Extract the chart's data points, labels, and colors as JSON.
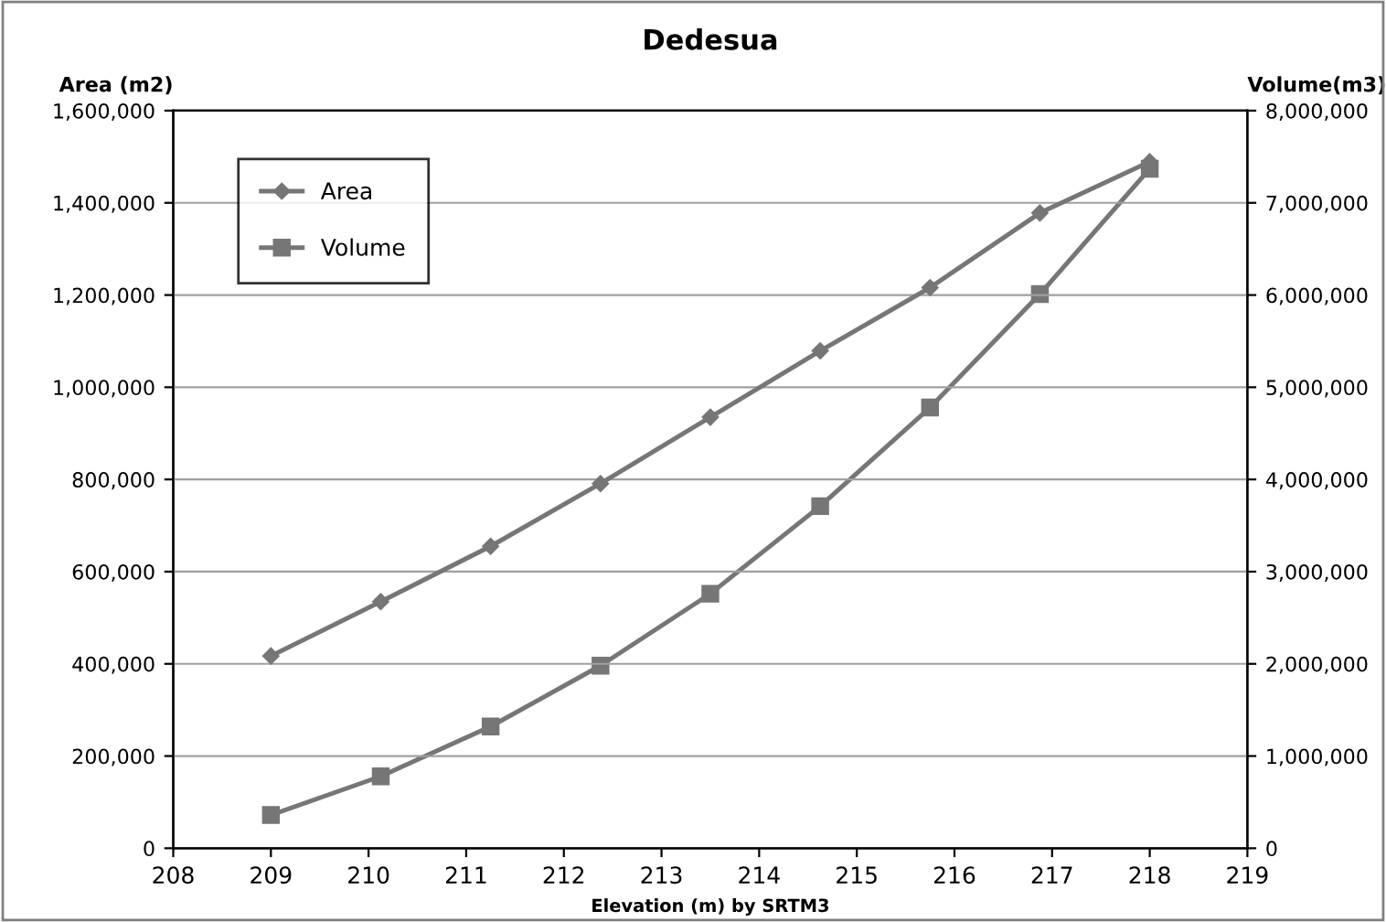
{
  "chart_data": {
    "type": "line",
    "title": "Dedesua",
    "xlabel": "Elevation (m) by SRTM3",
    "ylabel": "Area (m2)",
    "y2label": "Volume(m3)",
    "x": [
      209,
      210.125,
      211.25,
      212.375,
      213.5,
      214.625,
      215.75,
      216.875,
      218
    ],
    "series": [
      {
        "name": "Area",
        "color": "#767676",
        "marker": "diamond",
        "values": [
          417000,
          535000,
          655000,
          791000,
          935000,
          1079000,
          1216000,
          1378000,
          1489000
        ]
      },
      {
        "name": "Volume",
        "color": "#767676",
        "marker": "square",
        "axis": "y2",
        "values": [
          360000,
          780000,
          1320000,
          1980000,
          2760000,
          3710000,
          4780000,
          6010000,
          7370000
        ]
      }
    ],
    "xlim": [
      208,
      219
    ],
    "xticks": [
      208,
      209,
      210,
      211,
      212,
      213,
      214,
      215,
      216,
      217,
      218,
      219
    ],
    "ylim": [
      0,
      1600000
    ],
    "yticks": [
      {
        "value": 0,
        "label": "0"
      },
      {
        "value": 200000,
        "label": "200,000"
      },
      {
        "value": 400000,
        "label": "400,000"
      },
      {
        "value": 600000,
        "label": "600,000"
      },
      {
        "value": 800000,
        "label": "800,000"
      },
      {
        "value": 1000000,
        "label": "1,000,000"
      },
      {
        "value": 1200000,
        "label": "1,200,000"
      },
      {
        "value": 1400000,
        "label": "1,400,000"
      },
      {
        "value": 1600000,
        "label": "1,600,000"
      }
    ],
    "y2lim": [
      0,
      8000000
    ],
    "y2ticks": [
      {
        "value": 0,
        "label": "0"
      },
      {
        "value": 1000000,
        "label": "1,000,000"
      },
      {
        "value": 2000000,
        "label": "2,000,000"
      },
      {
        "value": 3000000,
        "label": "3,000,000"
      },
      {
        "value": 4000000,
        "label": "4,000,000"
      },
      {
        "value": 5000000,
        "label": "5,000,000"
      },
      {
        "value": 6000000,
        "label": "6,000,000"
      },
      {
        "value": 7000000,
        "label": "7,000,000"
      },
      {
        "value": 8000000,
        "label": "8,000,000"
      }
    ],
    "grid": "y",
    "legend": "top left",
    "line_style": "solid"
  }
}
